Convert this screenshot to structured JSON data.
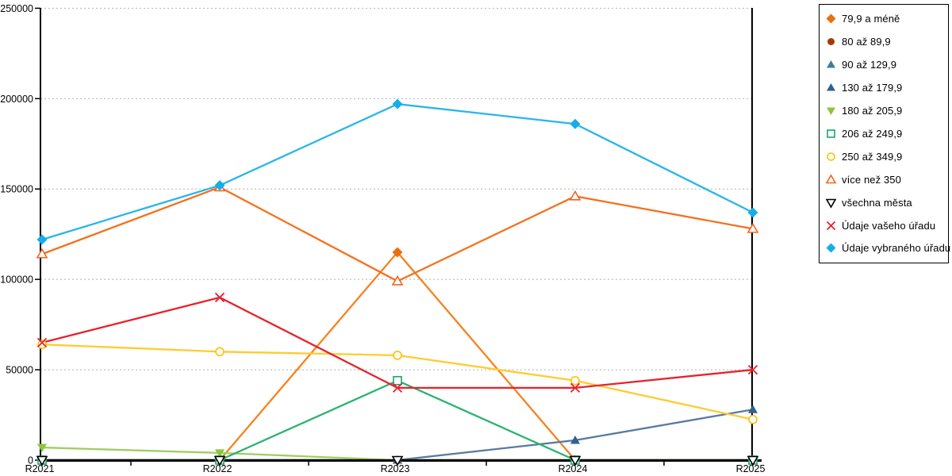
{
  "chart_data": {
    "type": "line",
    "title": "",
    "xlabel": "",
    "ylabel": "",
    "grid": "horizontal-dashed",
    "legend_position": "right",
    "categories": [
      "R2021",
      "R2022",
      "R2023",
      "R2024",
      "R2025"
    ],
    "y_axis": {
      "min": 0,
      "max": 250000,
      "tick_step": 50000,
      "tick_labels": [
        "0",
        "50000",
        "100000",
        "150000",
        "200000",
        "250000"
      ]
    },
    "series": [
      {
        "name": "79,9 a méně",
        "marker": "diamond",
        "color": "#E8700E",
        "line_color": "#F5821F",
        "values": [
          0,
          0,
          115000,
          0,
          0
        ]
      },
      {
        "name": "80 až 89,9",
        "marker": "circle",
        "color": "#A23B0B",
        "line_color": "#A23B0B",
        "values": [
          0,
          0,
          0,
          0,
          0
        ]
      },
      {
        "name": "90 až 129,9",
        "marker": "triangle-up",
        "color": "#3C7E9B",
        "line_color": "#3C7E9B",
        "values": [
          0,
          0,
          0,
          0,
          0
        ]
      },
      {
        "name": "130 až 179,9",
        "marker": "triangle-up",
        "color": "#30608F",
        "line_color": "#587BA0",
        "values": [
          0,
          0,
          0,
          11000,
          28000
        ]
      },
      {
        "name": "180 až 205,9",
        "marker": "triangle-down",
        "color": "#8CC540",
        "line_color": "#9FCE5E",
        "values": [
          7000,
          4000,
          0,
          0,
          0
        ]
      },
      {
        "name": "206 až 249,9",
        "marker": "square-open",
        "color": "#17A768",
        "line_color": "#28B371",
        "values": [
          0,
          0,
          44000,
          0,
          0
        ]
      },
      {
        "name": "250 až 349,9",
        "marker": "circle-open",
        "color": "#FFC000",
        "line_color": "#FFCB2F",
        "values": [
          64000,
          60000,
          58000,
          44000,
          22500
        ]
      },
      {
        "name": "více než 350",
        "marker": "triangle-up-open",
        "color": "#F4641E",
        "line_color": "#F4711C",
        "values": [
          114000,
          151000,
          99000,
          146000,
          128000
        ]
      },
      {
        "name": "všechna města",
        "marker": "triangle-down-open",
        "color": "#000000",
        "line_color": "#000000",
        "values": [
          0,
          0,
          0,
          0,
          0
        ]
      },
      {
        "name": "Údaje vašeho úřadu",
        "marker": "x",
        "color": "#E8222C",
        "line_color": "#E8222C",
        "values": [
          65000,
          90000,
          40000,
          40000,
          50000
        ]
      },
      {
        "name": "Údaje vybraného úřadu",
        "marker": "diamond",
        "color": "#14AEE8",
        "line_color": "#29B5EA",
        "values": [
          122000,
          152000,
          197000,
          186000,
          137000
        ]
      }
    ]
  },
  "colors": {
    "gridline": "#B0B0B0",
    "axis": "#000000",
    "background": "#FFFFFF",
    "legend_border": "#000000"
  }
}
